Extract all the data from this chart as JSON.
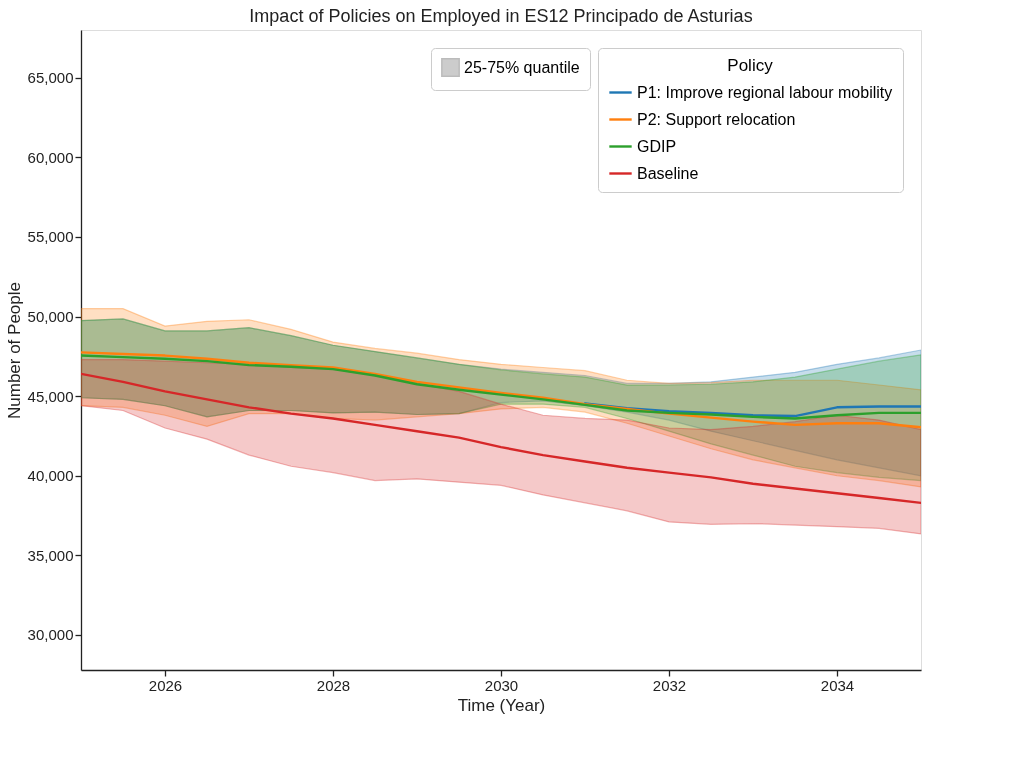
{
  "chart_data": {
    "type": "line",
    "title": "Impact of Policies on Employed in ES12 Principado de Asturias",
    "xlabel": "Time (Year)",
    "ylabel": "Number of People",
    "legend_title": "Policy",
    "annotations": [
      "25-75% quantile"
    ],
    "x": [
      2025,
      2025.5,
      2026,
      2026.5,
      2027,
      2027.5,
      2028,
      2028.5,
      2029,
      2029.5,
      2030,
      2030.5,
      2031,
      2031.5,
      2032,
      2032.5,
      2033,
      2033.5,
      2034,
      2034.5,
      2035
    ],
    "series": [
      {
        "name": "P1: Improve regional labour mobility",
        "color": "#1f77b4",
        "values": [
          null,
          null,
          null,
          null,
          null,
          null,
          null,
          null,
          null,
          null,
          null,
          null,
          44550,
          44250,
          44050,
          43950,
          43800,
          43750,
          44300,
          44350,
          44350
        ],
        "lower": [
          44900,
          44800,
          44400,
          43700,
          44100,
          44100,
          43950,
          44000,
          43850,
          43900,
          44600,
          44700,
          44400,
          44000,
          43500,
          42800,
          42200,
          41600,
          41000,
          40500,
          40000
        ],
        "upper": [
          49750,
          49850,
          49100,
          49100,
          49300,
          48800,
          48200,
          47800,
          47400,
          47000,
          46700,
          46500,
          46300,
          45800,
          45800,
          45900,
          46200,
          46500,
          47000,
          47400,
          47900
        ]
      },
      {
        "name": "P2: Support relocation",
        "color": "#ff7f0e",
        "values": [
          47750,
          47650,
          47550,
          47350,
          47100,
          46950,
          46800,
          46400,
          45900,
          45550,
          45200,
          44900,
          44500,
          44200,
          43900,
          43650,
          43400,
          43200,
          43300,
          43300,
          43050
        ],
        "lower": [
          44400,
          44300,
          43800,
          43100,
          43900,
          43900,
          43600,
          43500,
          43700,
          43900,
          44200,
          44300,
          44000,
          43300,
          42500,
          41700,
          41000,
          40500,
          40000,
          39700,
          39300
        ],
        "upper": [
          50500,
          50500,
          49400,
          49700,
          49800,
          49200,
          48400,
          48000,
          47700,
          47300,
          47000,
          46800,
          46600,
          46000,
          45800,
          45850,
          46000,
          46000,
          46000,
          45700,
          45400
        ]
      },
      {
        "name": "GDIP",
        "color": "#2ca02c",
        "values": [
          47550,
          47450,
          47350,
          47200,
          46950,
          46850,
          46700,
          46300,
          45750,
          45400,
          45100,
          44800,
          44450,
          44100,
          43950,
          43850,
          43700,
          43600,
          43800,
          43950,
          43950
        ],
        "lower": [
          44900,
          44800,
          44400,
          43700,
          44100,
          44100,
          43950,
          44000,
          43850,
          43900,
          44500,
          44500,
          44300,
          43600,
          42800,
          42000,
          41300,
          40600,
          40200,
          39900,
          39700
        ],
        "upper": [
          49750,
          49850,
          49100,
          49100,
          49300,
          48800,
          48200,
          47800,
          47400,
          47000,
          46650,
          46400,
          46200,
          45700,
          45700,
          45750,
          45900,
          46200,
          46700,
          47200,
          47600
        ]
      },
      {
        "name": "Baseline",
        "color": "#d62728",
        "values": [
          46400,
          45900,
          45300,
          44800,
          44300,
          43900,
          43600,
          43200,
          42800,
          42400,
          41800,
          41300,
          40900,
          40500,
          40200,
          39900,
          39500,
          39200,
          38900,
          38600,
          38300
        ],
        "lower": [
          44400,
          44100,
          43000,
          42300,
          41300,
          40600,
          40200,
          39700,
          39800,
          39600,
          39400,
          38800,
          38300,
          37800,
          37100,
          36950,
          37000,
          36900,
          36800,
          36700,
          36350
        ],
        "upper": [
          47300,
          47300,
          47200,
          47100,
          47000,
          46800,
          46700,
          46300,
          45800,
          45300,
          44500,
          43800,
          43600,
          43500,
          43000,
          42900,
          43100,
          43400,
          43800,
          43500,
          42900
        ]
      }
    ],
    "xlim": [
      2025,
      2035
    ],
    "xticks": [
      2026,
      2028,
      2030,
      2032,
      2034
    ],
    "ylim": [
      27800,
      68000
    ],
    "yticks": [
      {
        "value": 30000,
        "label": "30,000"
      },
      {
        "value": 35000,
        "label": "35,000"
      },
      {
        "value": 40000,
        "label": "40,000"
      },
      {
        "value": 45000,
        "label": "45,000"
      },
      {
        "value": 50000,
        "label": "50,000"
      },
      {
        "value": 55000,
        "label": "55,000"
      },
      {
        "value": 60000,
        "label": "60,000"
      },
      {
        "value": 65000,
        "label": "65,000"
      }
    ],
    "grid": false,
    "legend": "top right"
  }
}
